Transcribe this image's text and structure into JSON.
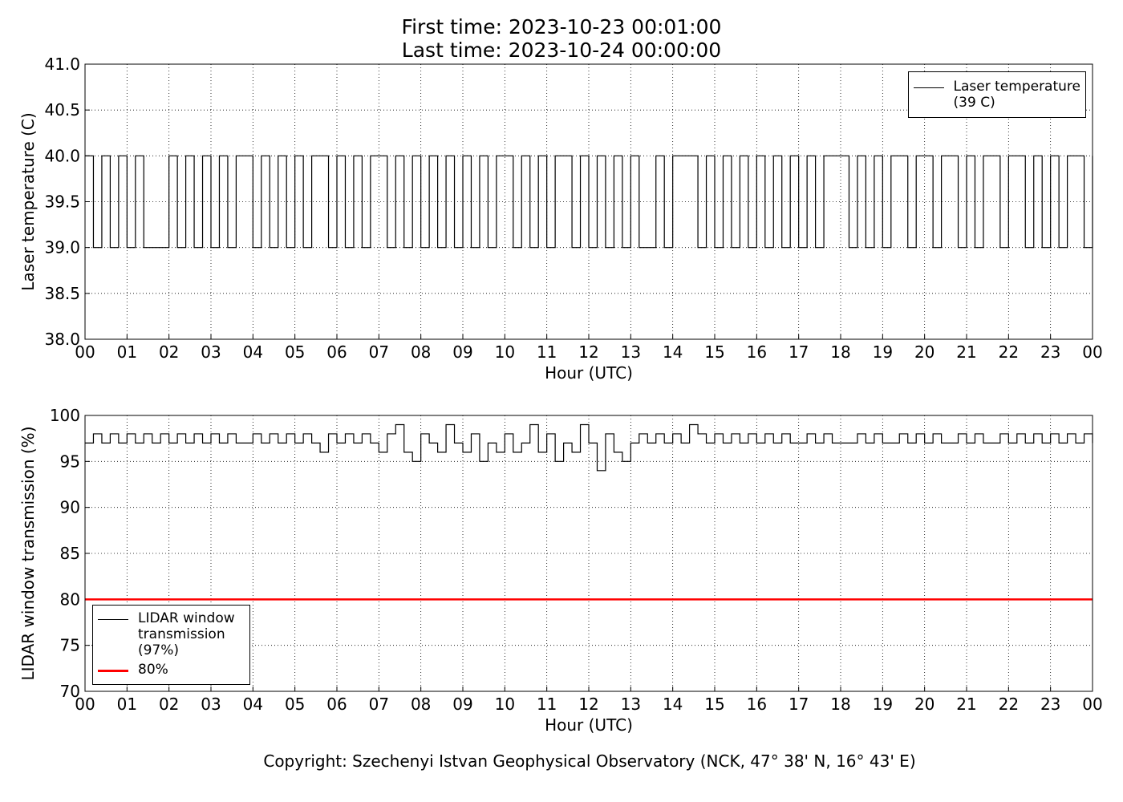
{
  "title": "First time: 2023-10-23 00:01:00\nLast time: 2023-10-24 00:00:00",
  "footer": "Copyright: Szechenyi Istvan Geophysical Observatory (NCK, 47° 38' N, 16° 43' E)",
  "chart_data": [
    {
      "type": "line",
      "drawstyle": "steps",
      "xlabel": "Hour (UTC)",
      "ylabel": "Laser temperature (C)",
      "xlim": [
        0,
        24
      ],
      "ylim": [
        38,
        41
      ],
      "grid": true,
      "legend": "upper right",
      "xticks": [
        {
          "value": 0,
          "label": "00"
        },
        {
          "value": 1,
          "label": "01"
        },
        {
          "value": 2,
          "label": "02"
        },
        {
          "value": 3,
          "label": "03"
        },
        {
          "value": 4,
          "label": "04"
        },
        {
          "value": 5,
          "label": "05"
        },
        {
          "value": 6,
          "label": "06"
        },
        {
          "value": 7,
          "label": "07"
        },
        {
          "value": 8,
          "label": "08"
        },
        {
          "value": 9,
          "label": "09"
        },
        {
          "value": 10,
          "label": "10"
        },
        {
          "value": 11,
          "label": "11"
        },
        {
          "value": 12,
          "label": "12"
        },
        {
          "value": 13,
          "label": "13"
        },
        {
          "value": 14,
          "label": "14"
        },
        {
          "value": 15,
          "label": "15"
        },
        {
          "value": 16,
          "label": "16"
        },
        {
          "value": 17,
          "label": "17"
        },
        {
          "value": 18,
          "label": "18"
        },
        {
          "value": 19,
          "label": "19"
        },
        {
          "value": 20,
          "label": "20"
        },
        {
          "value": 21,
          "label": "21"
        },
        {
          "value": 22,
          "label": "22"
        },
        {
          "value": 23,
          "label": "23"
        },
        {
          "value": 24,
          "label": "00"
        }
      ],
      "yticks": [
        {
          "value": 38,
          "label": "38.0"
        },
        {
          "value": 38.5,
          "label": "38.5"
        },
        {
          "value": 39,
          "label": "39.0"
        },
        {
          "value": 39.5,
          "label": "39.5"
        },
        {
          "value": 40,
          "label": "40.0"
        },
        {
          "value": 40.5,
          "label": "40.5"
        },
        {
          "value": 41,
          "label": "41.0"
        }
      ],
      "series": [
        {
          "name": "Laser temperature\n(39 C)",
          "color": "#000000",
          "x": [
            0,
            0.2,
            0.4,
            0.6,
            0.8,
            1,
            1.2,
            1.4,
            1.6,
            1.8,
            2,
            2.2,
            2.4,
            2.6,
            2.8,
            3,
            3.2,
            3.4,
            3.6,
            3.8,
            4,
            4.2,
            4.4,
            4.6,
            4.8,
            5,
            5.2,
            5.4,
            5.6,
            5.8,
            6,
            6.2,
            6.4,
            6.6,
            6.8,
            7,
            7.2,
            7.4,
            7.6,
            7.8,
            8,
            8.2,
            8.4,
            8.6,
            8.8,
            9,
            9.2,
            9.4,
            9.6,
            9.8,
            10,
            10.2,
            10.4,
            10.6,
            10.8,
            11,
            11.2,
            11.4,
            11.6,
            11.8,
            12,
            12.2,
            12.4,
            12.6,
            12.8,
            13,
            13.2,
            13.4,
            13.6,
            13.8,
            14,
            14.2,
            14.4,
            14.6,
            14.8,
            15,
            15.2,
            15.4,
            15.6,
            15.8,
            16,
            16.2,
            16.4,
            16.6,
            16.8,
            17,
            17.2,
            17.4,
            17.6,
            17.8,
            18,
            18.2,
            18.4,
            18.6,
            18.8,
            19,
            19.2,
            19.4,
            19.6,
            19.8,
            20,
            20.2,
            20.4,
            20.6,
            20.8,
            21,
            21.2,
            21.4,
            21.6,
            21.8,
            22,
            22.2,
            22.4,
            22.6,
            22.8,
            23,
            23.2,
            23.4,
            23.6,
            23.8,
            24
          ],
          "values": [
            40,
            39,
            40,
            39,
            40,
            39,
            40,
            39,
            39,
            39,
            40,
            39,
            40,
            39,
            40,
            39,
            40,
            39,
            40,
            40,
            39,
            40,
            39,
            40,
            39,
            40,
            39,
            40,
            40,
            39,
            40,
            39,
            40,
            39,
            40,
            40,
            39,
            40,
            39,
            40,
            39,
            40,
            39,
            40,
            39,
            40,
            39,
            40,
            39,
            40,
            40,
            39,
            40,
            39,
            40,
            39,
            40,
            40,
            39,
            40,
            39,
            40,
            39,
            40,
            39,
            40,
            39,
            39,
            40,
            39,
            40,
            40,
            40,
            39,
            40,
            39,
            40,
            39,
            40,
            39,
            40,
            39,
            40,
            39,
            40,
            39,
            40,
            39,
            40,
            40,
            40,
            39,
            40,
            39,
            40,
            39,
            40,
            40,
            39,
            40,
            40,
            39,
            40,
            40,
            39,
            40,
            39,
            40,
            40,
            39,
            40,
            40,
            39,
            40,
            39,
            40,
            39,
            40,
            40,
            39,
            40
          ]
        }
      ]
    },
    {
      "type": "line",
      "drawstyle": "steps",
      "xlabel": "Hour (UTC)",
      "ylabel": "LIDAR window transmission (%)",
      "xlim": [
        0,
        24
      ],
      "ylim": [
        70,
        100
      ],
      "grid": true,
      "legend": "lower left",
      "xticks": [
        {
          "value": 0,
          "label": "00"
        },
        {
          "value": 1,
          "label": "01"
        },
        {
          "value": 2,
          "label": "02"
        },
        {
          "value": 3,
          "label": "03"
        },
        {
          "value": 4,
          "label": "04"
        },
        {
          "value": 5,
          "label": "05"
        },
        {
          "value": 6,
          "label": "06"
        },
        {
          "value": 7,
          "label": "07"
        },
        {
          "value": 8,
          "label": "08"
        },
        {
          "value": 9,
          "label": "09"
        },
        {
          "value": 10,
          "label": "10"
        },
        {
          "value": 11,
          "label": "11"
        },
        {
          "value": 12,
          "label": "12"
        },
        {
          "value": 13,
          "label": "13"
        },
        {
          "value": 14,
          "label": "14"
        },
        {
          "value": 15,
          "label": "15"
        },
        {
          "value": 16,
          "label": "16"
        },
        {
          "value": 17,
          "label": "17"
        },
        {
          "value": 18,
          "label": "18"
        },
        {
          "value": 19,
          "label": "19"
        },
        {
          "value": 20,
          "label": "20"
        },
        {
          "value": 21,
          "label": "21"
        },
        {
          "value": 22,
          "label": "22"
        },
        {
          "value": 23,
          "label": "23"
        },
        {
          "value": 24,
          "label": "00"
        }
      ],
      "yticks": [
        70,
        75,
        80,
        85,
        90,
        95,
        100
      ],
      "series": [
        {
          "name": "LIDAR window\ntransmission\n(97%)",
          "color": "#000000",
          "x": [
            0,
            0.2,
            0.4,
            0.6,
            0.8,
            1,
            1.2,
            1.4,
            1.6,
            1.8,
            2,
            2.2,
            2.4,
            2.6,
            2.8,
            3,
            3.2,
            3.4,
            3.6,
            3.8,
            4,
            4.2,
            4.4,
            4.6,
            4.8,
            5,
            5.2,
            5.4,
            5.6,
            5.8,
            6,
            6.2,
            6.4,
            6.6,
            6.8,
            7,
            7.2,
            7.4,
            7.6,
            7.8,
            8,
            8.2,
            8.4,
            8.6,
            8.8,
            9,
            9.2,
            9.4,
            9.6,
            9.8,
            10,
            10.2,
            10.4,
            10.6,
            10.8,
            11,
            11.2,
            11.4,
            11.6,
            11.8,
            12,
            12.2,
            12.4,
            12.6,
            12.8,
            13,
            13.2,
            13.4,
            13.6,
            13.8,
            14,
            14.2,
            14.4,
            14.6,
            14.8,
            15,
            15.2,
            15.4,
            15.6,
            15.8,
            16,
            16.2,
            16.4,
            16.6,
            16.8,
            17,
            17.2,
            17.4,
            17.6,
            17.8,
            18,
            18.2,
            18.4,
            18.6,
            18.8,
            19,
            19.2,
            19.4,
            19.6,
            19.8,
            20,
            20.2,
            20.4,
            20.6,
            20.8,
            21,
            21.2,
            21.4,
            21.6,
            21.8,
            22,
            22.2,
            22.4,
            22.6,
            22.8,
            23,
            23.2,
            23.4,
            23.6,
            23.8,
            24
          ],
          "values": [
            97,
            98,
            97,
            98,
            97,
            98,
            97,
            98,
            97,
            98,
            97,
            98,
            97,
            98,
            97,
            98,
            97,
            98,
            97,
            97,
            98,
            97,
            98,
            97,
            98,
            97,
            98,
            97,
            96,
            98,
            97,
            98,
            97,
            98,
            97,
            96,
            98,
            99,
            96,
            95,
            98,
            97,
            96,
            99,
            97,
            96,
            98,
            95,
            97,
            96,
            98,
            96,
            97,
            99,
            96,
            98,
            95,
            97,
            96,
            99,
            97,
            94,
            98,
            96,
            95,
            97,
            98,
            97,
            98,
            97,
            98,
            97,
            99,
            98,
            97,
            98,
            97,
            98,
            97,
            98,
            97,
            98,
            97,
            98,
            97,
            97,
            98,
            97,
            98,
            97,
            97,
            97,
            98,
            97,
            98,
            97,
            97,
            98,
            97,
            98,
            97,
            98,
            97,
            97,
            98,
            97,
            98,
            97,
            97,
            98,
            97,
            98,
            97,
            98,
            97,
            98,
            97,
            98,
            97,
            98,
            97
          ]
        },
        {
          "name": "80%",
          "color": "#ff0000",
          "linewidth": 2.5,
          "x": [
            0,
            24
          ],
          "values": [
            80,
            80
          ]
        }
      ]
    }
  ]
}
